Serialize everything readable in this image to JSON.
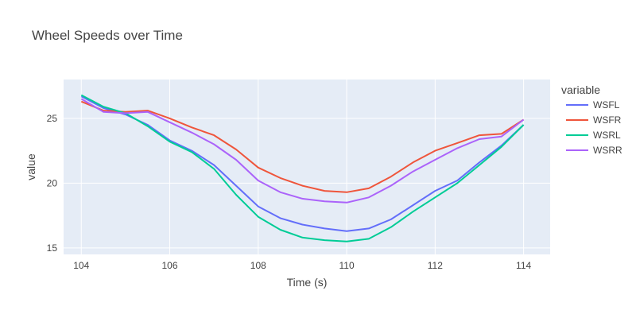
{
  "chart_data": {
    "type": "line",
    "title": "Wheel Speeds over Time",
    "xlabel": "Time (s)",
    "ylabel": "value",
    "xlim": [
      103.6,
      114.6
    ],
    "ylim": [
      14.5,
      28.0
    ],
    "xticks": [
      104,
      106,
      108,
      110,
      112,
      114
    ],
    "xtick_labels": [
      "104",
      "106",
      "108",
      "110",
      "112",
      "114"
    ],
    "yticks": [
      15,
      20,
      25
    ],
    "ytick_labels": [
      "15",
      "20",
      "25"
    ],
    "grid": true,
    "legend_title": "variable",
    "legend_position": "right",
    "colors": {
      "plot_bg": "#E5ECF6",
      "grid": "#FFFFFF",
      "WSFL": "#636EFA",
      "WSFR": "#EF553B",
      "WSRL": "#00CC96",
      "WSRR": "#AB63FA"
    },
    "x": [
      104.0,
      104.5,
      105.0,
      105.5,
      106.0,
      106.5,
      107.0,
      107.5,
      108.0,
      108.5,
      109.0,
      109.5,
      110.0,
      110.5,
      111.0,
      111.5,
      112.0,
      112.5,
      113.0,
      113.5,
      114.0
    ],
    "series": [
      {
        "name": "WSFL",
        "values": [
          26.7,
          25.8,
          25.3,
          24.5,
          23.3,
          22.5,
          21.4,
          19.8,
          18.2,
          17.3,
          16.8,
          16.5,
          16.3,
          16.5,
          17.2,
          18.3,
          19.4,
          20.2,
          21.6,
          22.9,
          24.5
        ]
      },
      {
        "name": "WSFR",
        "values": [
          26.3,
          25.6,
          25.5,
          25.6,
          25.0,
          24.3,
          23.7,
          22.6,
          21.2,
          20.4,
          19.8,
          19.4,
          19.3,
          19.6,
          20.5,
          21.6,
          22.5,
          23.1,
          23.7,
          23.8,
          24.9
        ]
      },
      {
        "name": "WSRL",
        "values": [
          26.8,
          25.9,
          25.4,
          24.4,
          23.2,
          22.4,
          21.1,
          19.1,
          17.4,
          16.4,
          15.8,
          15.6,
          15.5,
          15.7,
          16.6,
          17.8,
          18.9,
          20.0,
          21.4,
          22.8,
          24.5
        ]
      },
      {
        "name": "WSRR",
        "values": [
          26.5,
          25.5,
          25.4,
          25.5,
          24.7,
          23.9,
          23.0,
          21.8,
          20.2,
          19.3,
          18.8,
          18.6,
          18.5,
          18.9,
          19.8,
          20.9,
          21.8,
          22.7,
          23.4,
          23.6,
          24.9
        ]
      }
    ]
  }
}
